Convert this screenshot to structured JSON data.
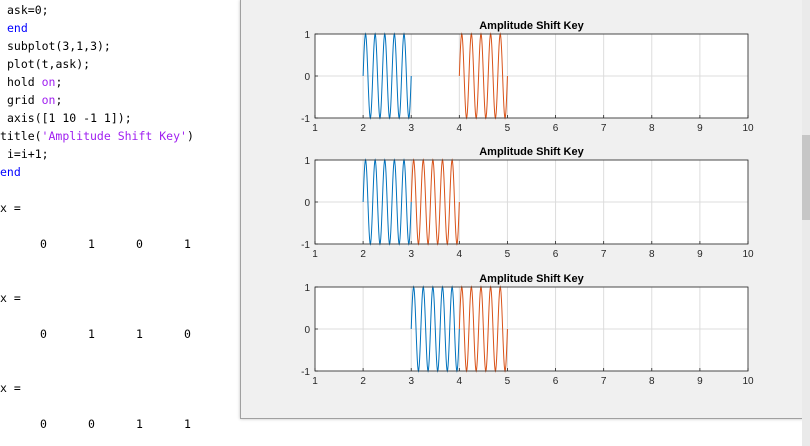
{
  "editor": {
    "code_lines": [
      {
        "indent": 1,
        "parts": [
          {
            "t": "ask=0;",
            "c": "plain"
          }
        ]
      },
      {
        "indent": 1,
        "parts": [
          {
            "t": "end",
            "c": "kw"
          }
        ]
      },
      {
        "indent": 1,
        "parts": [
          {
            "t": "subplot(3,1,3);",
            "c": "plain"
          }
        ]
      },
      {
        "indent": 1,
        "parts": [
          {
            "t": "plot(t,ask);",
            "c": "plain"
          }
        ]
      },
      {
        "indent": 1,
        "parts": [
          {
            "t": "hold ",
            "c": "plain"
          },
          {
            "t": "on",
            "c": "str"
          },
          {
            "t": ";",
            "c": "plain"
          }
        ]
      },
      {
        "indent": 1,
        "parts": [
          {
            "t": "grid ",
            "c": "plain"
          },
          {
            "t": "on",
            "c": "str"
          },
          {
            "t": ";",
            "c": "plain"
          }
        ]
      },
      {
        "indent": 1,
        "parts": [
          {
            "t": "axis([1 10 -1 1]);",
            "c": "plain"
          }
        ]
      },
      {
        "indent": 0,
        "parts": [
          {
            "t": "title(",
            "c": "plain"
          },
          {
            "t": "'Amplitude Shift Key'",
            "c": "str"
          },
          {
            "t": ")",
            "c": "plain"
          }
        ]
      },
      {
        "indent": 1,
        "parts": [
          {
            "t": "i=i+1;",
            "c": "plain"
          }
        ]
      },
      {
        "indent": 0,
        "parts": [
          {
            "t": "end",
            "c": "kw"
          }
        ]
      }
    ],
    "outputs": [
      {
        "label": "x =",
        "values": [
          "0",
          "1",
          "0",
          "1"
        ]
      },
      {
        "label": "x =",
        "values": [
          "0",
          "1",
          "1",
          "0"
        ]
      },
      {
        "label": "x =",
        "values": [
          "0",
          "0",
          "1",
          "1"
        ]
      }
    ]
  },
  "figure": {
    "colors": {
      "blue": "#0072bd",
      "orange": "#d95319",
      "background": "#f0f0f0"
    },
    "chart_data": [
      {
        "type": "line",
        "title": "Amplitude Shift Key",
        "xlim": [
          1,
          10
        ],
        "ylim": [
          -1,
          1
        ],
        "xticks": [
          "1",
          "2",
          "3",
          "4",
          "5",
          "6",
          "7",
          "8",
          "9",
          "10"
        ],
        "yticks": [
          "1",
          "0",
          "-1"
        ],
        "grid": true,
        "series": [
          {
            "color": "blue",
            "bursts": [
              [
                2,
                3
              ]
            ]
          },
          {
            "color": "orange",
            "bursts": [
              [
                4,
                5
              ]
            ]
          }
        ]
      },
      {
        "type": "line",
        "title": "Amplitude Shift Key",
        "xlim": [
          1,
          10
        ],
        "ylim": [
          -1,
          1
        ],
        "xticks": [
          "1",
          "2",
          "3",
          "4",
          "5",
          "6",
          "7",
          "8",
          "9",
          "10"
        ],
        "yticks": [
          "1",
          "0",
          "-1"
        ],
        "grid": true,
        "series": [
          {
            "color": "blue",
            "bursts": [
              [
                2,
                3
              ]
            ]
          },
          {
            "color": "orange",
            "bursts": [
              [
                3,
                4
              ]
            ]
          }
        ]
      },
      {
        "type": "line",
        "title": "Amplitude Shift Key",
        "xlim": [
          1,
          10
        ],
        "ylim": [
          -1,
          1
        ],
        "xticks": [
          "1",
          "2",
          "3",
          "4",
          "5",
          "6",
          "7",
          "8",
          "9",
          "10"
        ],
        "yticks": [
          "1",
          "0",
          "-1"
        ],
        "grid": true,
        "series": [
          {
            "color": "blue",
            "bursts": [
              [
                3,
                4
              ]
            ]
          },
          {
            "color": "orange",
            "bursts": [
              [
                4,
                5
              ]
            ]
          }
        ]
      }
    ]
  }
}
